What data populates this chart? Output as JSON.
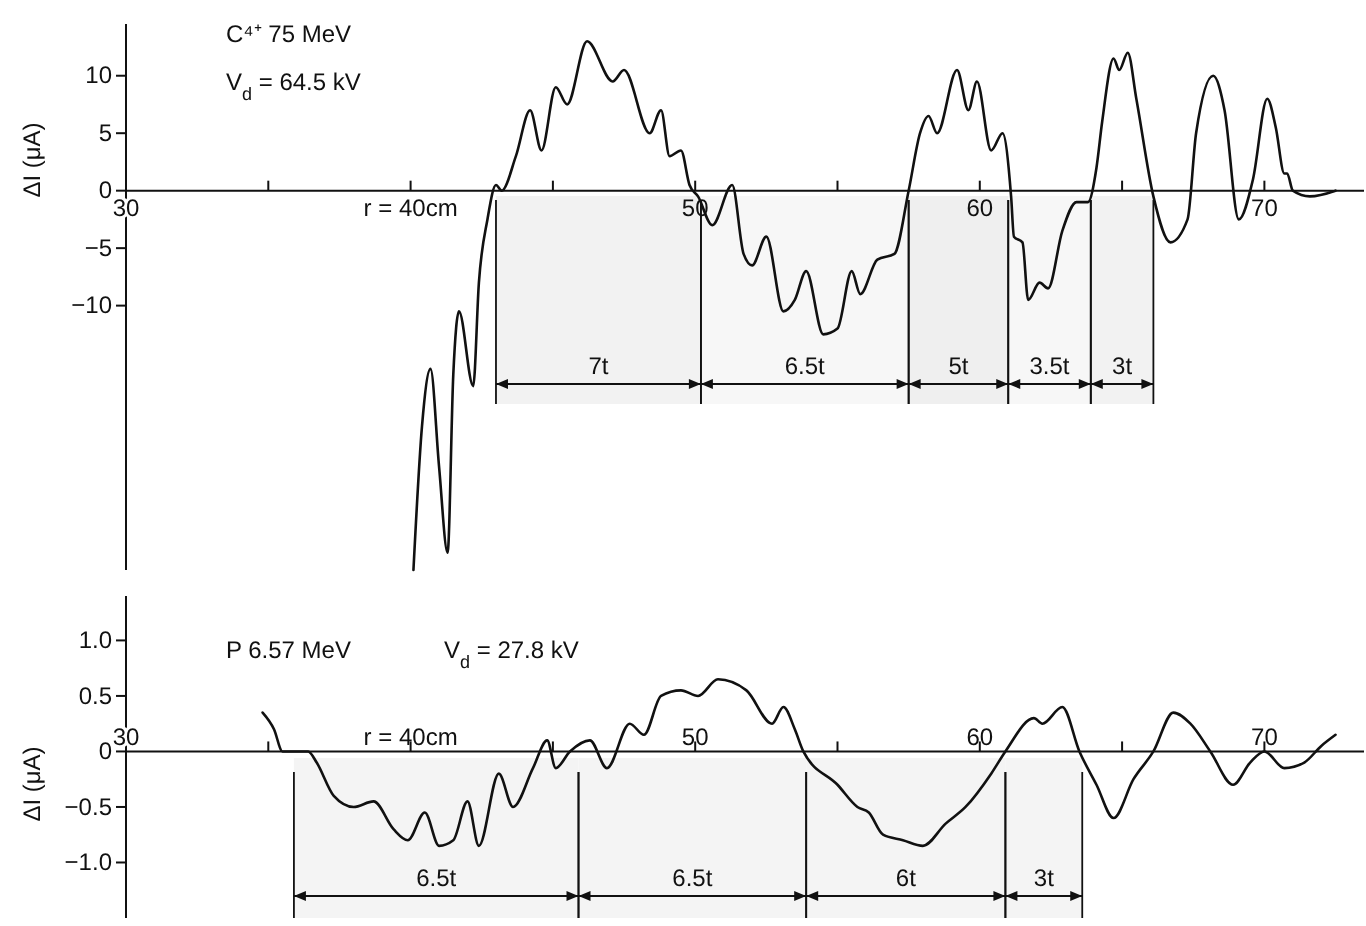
{
  "chart_data": [
    {
      "type": "line",
      "ylabel": "ΔI (μA)",
      "annotations": [
        "C⁴⁺ 75 MeV",
        "V$_{d}$ = 64.5 kV"
      ],
      "xlim": [
        30,
        73.5
      ],
      "ylim": [
        -33,
        14.5
      ],
      "xticks": [
        30,
        {
          "value": 35,
          "label": null
        },
        {
          "value": 40,
          "label": "r = 40cm"
        },
        {
          "value": 45,
          "label": null
        },
        50,
        {
          "value": 55,
          "label": null
        },
        60,
        {
          "value": 65,
          "label": null
        },
        70
      ],
      "yticks": [
        10,
        5,
        0,
        -5,
        -10
      ],
      "x": [
        40.1,
        40.4,
        40.7,
        41.0,
        41.3,
        41.5,
        41.7,
        42.2,
        42.4,
        42.7,
        43.0,
        43.2,
        43.7,
        44.2,
        44.6,
        45.1,
        45.5,
        46.2,
        47.1,
        47.5,
        48.4,
        48.8,
        49.1,
        49.5,
        49.8,
        50.1,
        50.6,
        51.3,
        51.7,
        52.0,
        52.5,
        53.1,
        53.5,
        53.9,
        54.5,
        55.0,
        55.5,
        55.8,
        56.4,
        57.0,
        57.5,
        57.9,
        58.2,
        58.5,
        59.2,
        59.6,
        59.9,
        60.4,
        60.8,
        61.1,
        61.2,
        61.5,
        61.7,
        62.1,
        62.4,
        62.9,
        63.4,
        63.8,
        64.1,
        64.3,
        64.7,
        64.9,
        65.2,
        65.5,
        66.1,
        66.7,
        67.3,
        67.6,
        68.2,
        68.6,
        69.1,
        69.6,
        70.1,
        70.4,
        70.7,
        70.8,
        71.0,
        71.6,
        72.5
      ],
      "series": [
        {
          "color": "#111111",
          "values": [
            -33,
            -20.5,
            -15.5,
            -24,
            -31.5,
            -16,
            -10.5,
            -17,
            -8,
            -2.5,
            0.5,
            0,
            3,
            7,
            3.5,
            9,
            7.5,
            13,
            9.5,
            10.5,
            5,
            7,
            3,
            3.5,
            0.5,
            -0.5,
            -3,
            0.5,
            -5.5,
            -6.5,
            -4,
            -10.5,
            -9.5,
            -7,
            -12.5,
            -12,
            -7,
            -9,
            -6,
            -5.5,
            0,
            5,
            6.5,
            5,
            10.5,
            7,
            9.5,
            3.5,
            5,
            -0.5,
            -4,
            -4.5,
            -9.5,
            -8,
            -8.5,
            -3.5,
            -1,
            -1,
            2,
            6,
            11.5,
            10.5,
            12,
            8,
            -0.5,
            -4.5,
            -2.5,
            5,
            10,
            7,
            -2.5,
            1,
            8,
            5.5,
            1.5,
            1.5,
            0,
            -0.5,
            0
          ]
        }
      ],
      "bands": [
        {
          "axis": "x",
          "from": 43.0,
          "to": 50.2,
          "label": "7t",
          "color": "#f2f2f2"
        },
        {
          "axis": "x",
          "from": 50.2,
          "to": 57.5,
          "label": "6.5t",
          "color": "#f7f7f7"
        },
        {
          "axis": "x",
          "from": 57.5,
          "to": 61.0,
          "label": "5t",
          "color": "#efefef"
        },
        {
          "axis": "x",
          "from": 61.0,
          "to": 63.9,
          "label": "3.5t",
          "color": "#f7f7f7"
        },
        {
          "axis": "x",
          "from": 63.9,
          "to": 66.1,
          "label": "3t",
          "color": "#f2f2f2"
        }
      ]
    },
    {
      "type": "line",
      "ylabel": "ΔI (μA)",
      "annotations": [
        "P 6.57 MeV",
        "V$_{d}$ = 27.8 kV"
      ],
      "xlim": [
        30,
        73.5
      ],
      "ylim": [
        -1.5,
        1.4
      ],
      "xticks": [
        30,
        {
          "value": 35,
          "label": null
        },
        {
          "value": 40,
          "label": "r = 40cm"
        },
        {
          "value": 45,
          "label": null
        },
        50,
        {
          "value": 55,
          "label": null
        },
        60,
        {
          "value": 65,
          "label": null
        },
        70
      ],
      "yticks": [
        {
          "value": 1,
          "label": "1.0"
        },
        {
          "value": 0.5,
          "label": "0.5"
        },
        0,
        {
          "value": -0.5,
          "label": "−0.5"
        },
        {
          "value": -1,
          "label": "−1.0"
        }
      ],
      "x": [
        34.8,
        35.2,
        35.5,
        36.4,
        36.7,
        37.3,
        38.0,
        38.7,
        39.4,
        39.9,
        40.5,
        41.0,
        41.5,
        42.0,
        42.4,
        43.1,
        43.6,
        44.3,
        44.8,
        45.1,
        45.6,
        46.3,
        46.9,
        47.7,
        48.2,
        48.8,
        49.5,
        50.1,
        50.8,
        51.8,
        52.7,
        53.1,
        53.5,
        53.8,
        55.0,
        55.7,
        56.1,
        56.6,
        57.3,
        58.0,
        58.8,
        59.5,
        60.4,
        60.9,
        61.9,
        62.2,
        62.9,
        63.5,
        64.1,
        64.7,
        65.4,
        66.1,
        66.8,
        67.4,
        68.1,
        68.9,
        69.5,
        70.0,
        70.7,
        71.4,
        72.0,
        72.5
      ],
      "series": [
        {
          "color": "#111111",
          "values": [
            0.35,
            0.2,
            0,
            0,
            -0.1,
            -0.4,
            -0.5,
            -0.45,
            -0.7,
            -0.8,
            -0.55,
            -0.85,
            -0.8,
            -0.45,
            -0.85,
            -0.2,
            -0.5,
            -0.15,
            0.1,
            -0.15,
            0,
            0.1,
            -0.15,
            0.25,
            0.15,
            0.5,
            0.55,
            0.5,
            0.65,
            0.55,
            0.25,
            0.4,
            0.2,
            0,
            -0.3,
            -0.5,
            -0.55,
            -0.75,
            -0.8,
            -0.85,
            -0.65,
            -0.5,
            -0.2,
            0,
            0.3,
            0.25,
            0.4,
            0,
            -0.3,
            -0.6,
            -0.25,
            0,
            0.35,
            0.25,
            0,
            -0.3,
            -0.1,
            0,
            -0.15,
            -0.1,
            0.05,
            0.15
          ]
        }
      ],
      "bands": [
        {
          "axis": "x",
          "from": 35.9,
          "to": 45.9,
          "label": "6.5t",
          "color": "#f4f4f4"
        },
        {
          "axis": "x",
          "from": 45.9,
          "to": 53.9,
          "label": "6.5t",
          "color": "#f4f4f4"
        },
        {
          "axis": "x",
          "from": 53.9,
          "to": 60.9,
          "label": "6t",
          "color": "#f4f4f4"
        },
        {
          "axis": "x",
          "from": 60.9,
          "to": 63.6,
          "label": "3t",
          "color": "#f4f4f4"
        }
      ]
    }
  ]
}
